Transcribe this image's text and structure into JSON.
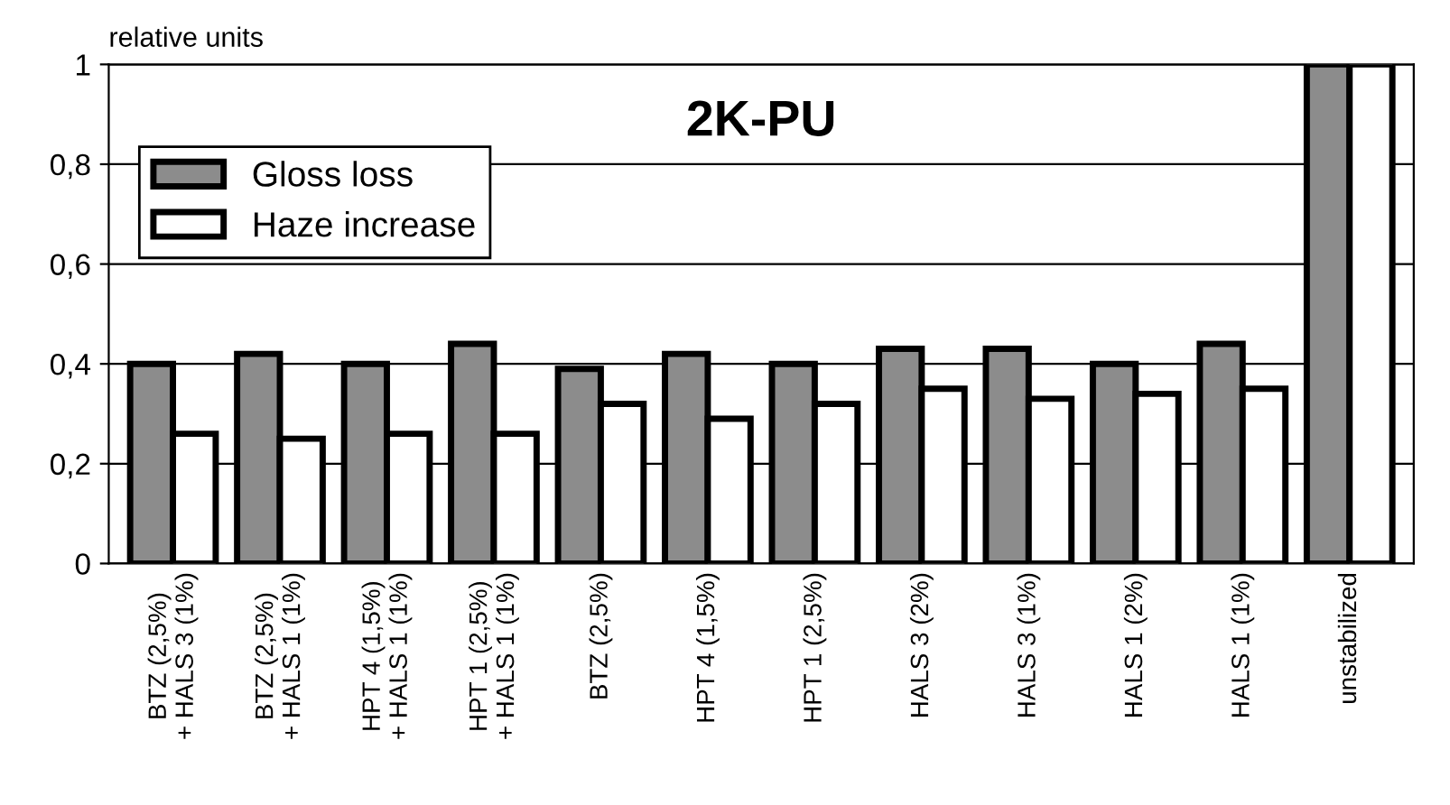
{
  "chart_data": {
    "type": "bar",
    "title": "2K-PU",
    "ylabel": "relative units",
    "categories": [
      "BTZ (2,5%)\n+ HALS 3 (1%)",
      "BTZ (2,5%)\n+ HALS 1 (1%)",
      "HPT 4 (1,5%)\n+ HALS 1 (1%)",
      "HPT 1 (2,5%)\n+ HALS 1 (1%)",
      "BTZ (2,5%)",
      "HPT 4 (1,5%)",
      "HPT 1 (2,5%)",
      "HALS 3 (2%)",
      "HALS 3 (1%)",
      "HALS 1 (2%)",
      "HALS 1 (1%)",
      "unstabilized"
    ],
    "series": [
      {
        "name": "Gloss loss",
        "color": "#8c8c8c",
        "values": [
          0.4,
          0.42,
          0.4,
          0.44,
          0.39,
          0.42,
          0.4,
          0.43,
          0.43,
          0.4,
          0.44,
          1.0
        ]
      },
      {
        "name": "Haze increase",
        "color": "#ffffff",
        "values": [
          0.26,
          0.25,
          0.26,
          0.26,
          0.32,
          0.29,
          0.32,
          0.35,
          0.33,
          0.34,
          0.35,
          1.0
        ]
      }
    ],
    "ylim": [
      0,
      1
    ],
    "yticks": [
      0,
      {
        "value": 0.2,
        "label": "0,2"
      },
      {
        "value": 0.4,
        "label": "0,4"
      },
      {
        "value": 0.6,
        "label": "0,6"
      },
      {
        "value": 0.8,
        "label": "0,8"
      },
      1
    ],
    "grid": "y",
    "legend": "top left"
  }
}
